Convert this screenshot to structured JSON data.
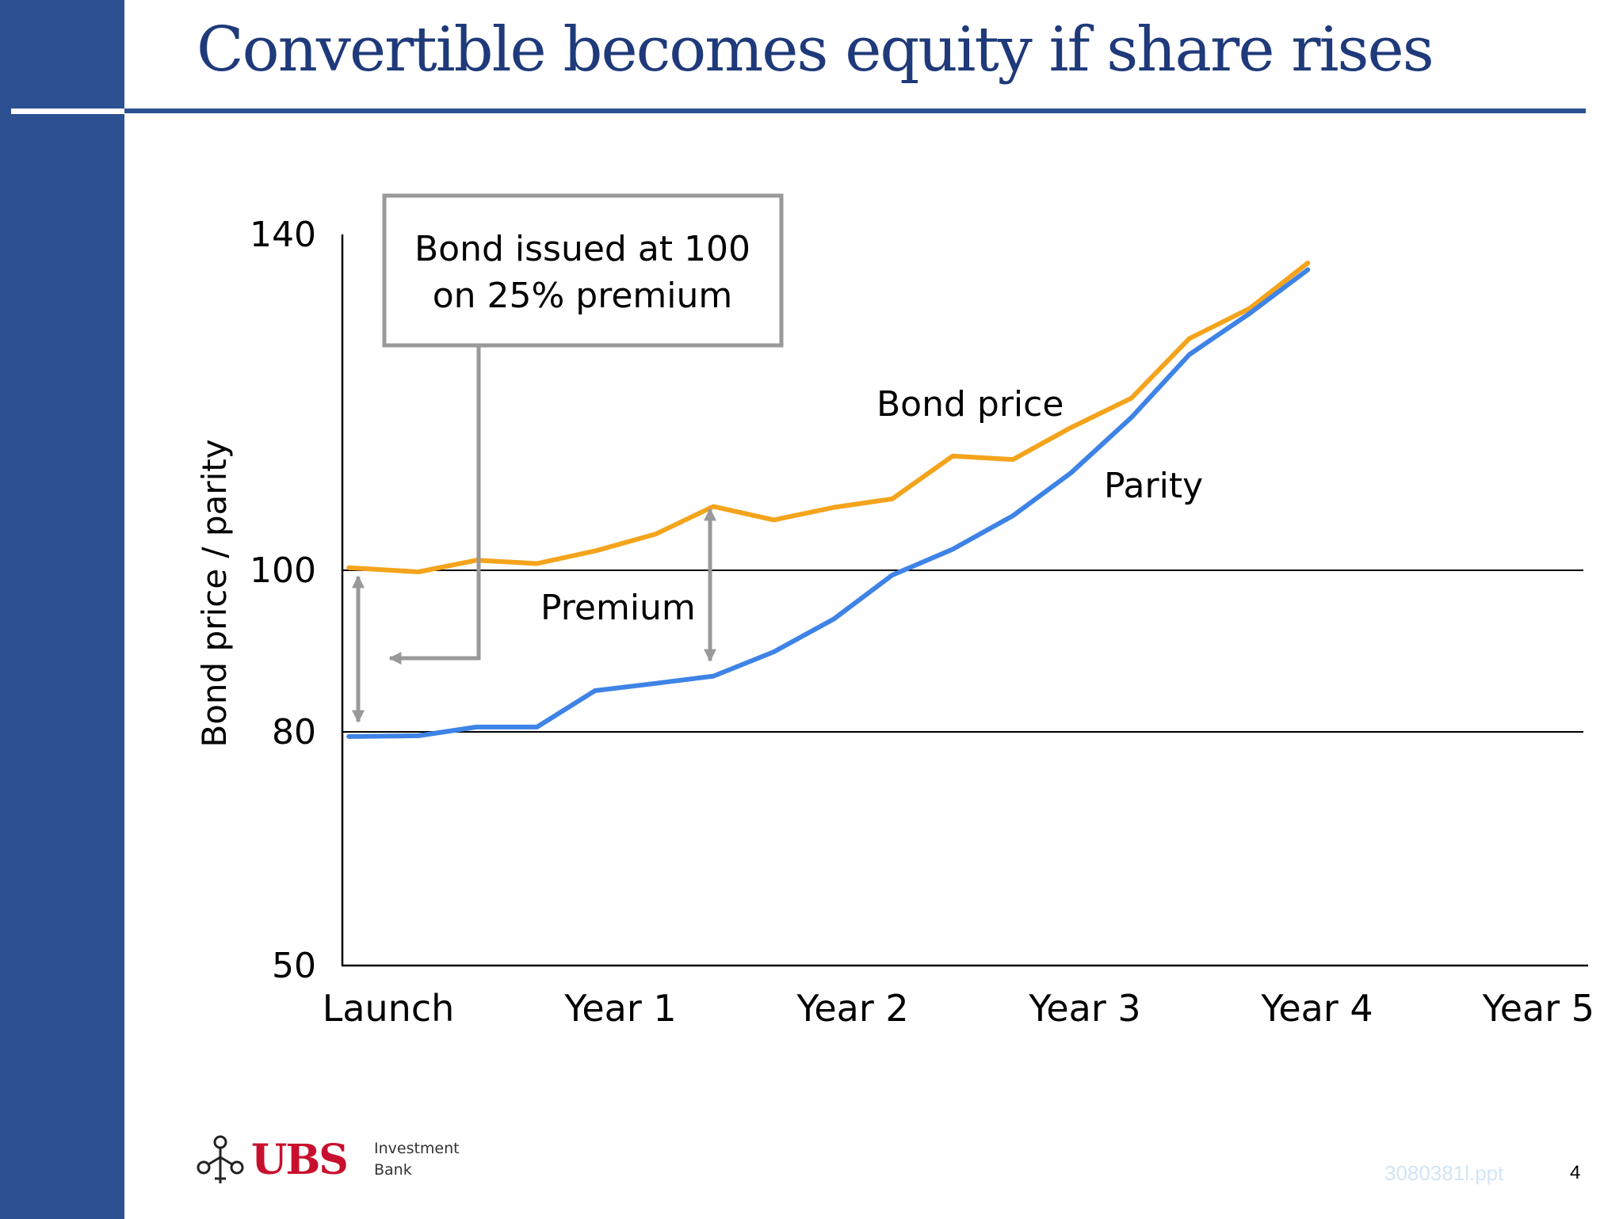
{
  "slide": {
    "title": "Convertible becomes equity if share rises",
    "page_number": "4",
    "file_ref": "3080381l.ppt"
  },
  "brand": {
    "logo_name": "UBS",
    "logo_subtitle": "Investment Bank",
    "logo_icon": "three-keys-icon"
  },
  "colors": {
    "navy": "#2c5192",
    "title_text": "#1f3a7a",
    "bond_price_line": "#f4a41c",
    "parity_line": "#3e83e6",
    "annotation_gray": "#999999",
    "logo_red": "#c8102e",
    "file_ref_text": "#d2e5f4"
  },
  "chart_data": {
    "type": "line",
    "ylabel": "Bond price / parity",
    "xlabel": "",
    "y_ticks": [
      140,
      100,
      80,
      50
    ],
    "y_tick_labels": [
      "140",
      "100",
      "80",
      "50"
    ],
    "x_ticks": [
      0,
      1,
      2,
      3,
      4,
      5
    ],
    "x_tick_labels": [
      "Launch",
      "Year 1",
      "Year 2",
      "Year 3",
      "Year 4",
      "Year 5"
    ],
    "x_range": [
      0,
      5
    ],
    "reference_lines": [
      100,
      80
    ],
    "series": [
      {
        "name": "Bond price",
        "x": [
          -0.17,
          0.13,
          0.38,
          0.64,
          0.89,
          1.15,
          1.4,
          1.66,
          1.92,
          2.17,
          2.43,
          2.69,
          2.94,
          3.2,
          3.45,
          3.71,
          3.96
        ],
        "y": [
          100.3,
          99.8,
          101.2,
          100.8,
          102.3,
          104.3,
          107.6,
          106.0,
          107.5,
          108.5,
          113.6,
          113.2,
          117.0,
          120.5,
          127.6,
          131.2,
          136.6
        ]
      },
      {
        "name": "Parity",
        "x": [
          -0.17,
          0.13,
          0.38,
          0.64,
          0.89,
          1.15,
          1.4,
          1.66,
          1.92,
          2.17,
          2.43,
          2.69,
          2.94,
          3.2,
          3.45,
          3.71,
          3.96
        ],
        "y": [
          79.4,
          79.5,
          80.6,
          80.6,
          85.1,
          86.0,
          86.9,
          89.9,
          94.0,
          99.4,
          102.5,
          106.5,
          111.6,
          118.2,
          125.7,
          130.6,
          135.8
        ]
      }
    ],
    "annotations": {
      "callout": [
        "Bond issued at 100",
        "on 25% premium"
      ],
      "premium": "Premium",
      "bond_price": "Bond price",
      "parity": "Parity"
    }
  }
}
